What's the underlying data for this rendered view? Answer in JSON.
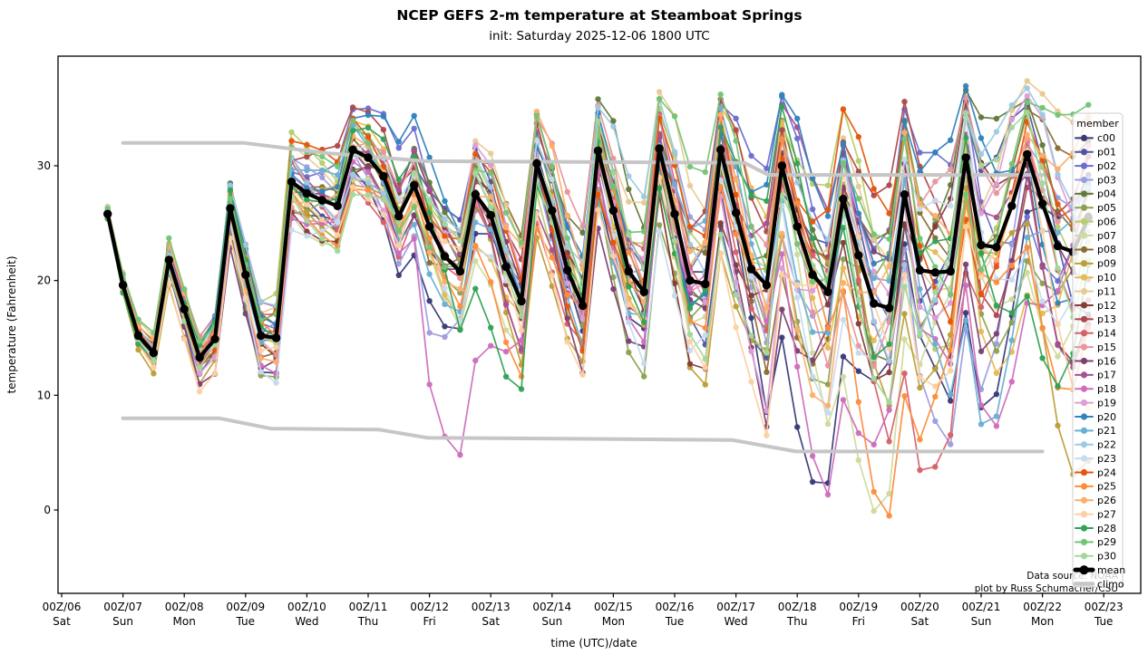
{
  "chart_data": {
    "type": "line",
    "title": "NCEP GEFS 2-m temperature at Steamboat Springs",
    "subtitle": "init: Saturday 2025-12-06 1800 UTC",
    "xlabel": "time (UTC)/date",
    "ylabel": "temperature (Fahrenheit)",
    "ylim": [
      -7.3,
      39.6
    ],
    "y_ticks": [
      0,
      10,
      20,
      30
    ],
    "x_ticks": [
      {
        "utc": "00Z/06",
        "day": "Sat"
      },
      {
        "utc": "00Z/07",
        "day": "Sun"
      },
      {
        "utc": "00Z/08",
        "day": "Mon"
      },
      {
        "utc": "00Z/09",
        "day": "Tue"
      },
      {
        "utc": "00Z/10",
        "day": "Wed"
      },
      {
        "utc": "00Z/11",
        "day": "Thu"
      },
      {
        "utc": "00Z/12",
        "day": "Fri"
      },
      {
        "utc": "00Z/13",
        "day": "Sat"
      },
      {
        "utc": "00Z/14",
        "day": "Sun"
      },
      {
        "utc": "00Z/15",
        "day": "Mon"
      },
      {
        "utc": "00Z/16",
        "day": "Tue"
      },
      {
        "utc": "00Z/17",
        "day": "Wed"
      },
      {
        "utc": "00Z/18",
        "day": "Thu"
      },
      {
        "utc": "00Z/19",
        "day": "Fri"
      },
      {
        "utc": "00Z/20",
        "day": "Sat"
      },
      {
        "utc": "00Z/21",
        "day": "Sun"
      },
      {
        "utc": "00Z/22",
        "day": "Mon"
      },
      {
        "utc": "00Z/23",
        "day": "Tue"
      }
    ],
    "time_start_days": 0.75,
    "time_step_days": 0.25,
    "mean": {
      "name": "mean",
      "color": "#000000",
      "values": [
        25.8,
        19.6,
        15.2,
        13.7,
        21.8,
        17.5,
        13.3,
        14.9,
        26.3,
        20.5,
        15.2,
        15.0,
        28.6,
        27.6,
        27.0,
        26.5,
        31.4,
        30.7,
        29.1,
        25.6,
        28.3,
        24.7,
        22.1,
        20.8,
        27.5,
        25.7,
        21.2,
        18.2,
        30.2,
        26.1,
        20.9,
        17.8,
        31.3,
        26.1,
        20.8,
        19.0,
        31.5,
        25.8,
        20.0,
        19.7,
        31.4,
        25.9,
        21.0,
        19.6,
        30.0,
        24.7,
        20.5,
        19.0,
        27.1,
        22.2,
        18.0,
        17.6,
        27.5,
        20.9,
        20.7,
        20.8,
        30.7,
        23.1,
        22.9,
        26.5,
        31.0,
        26.7,
        23.0,
        22.5,
        25.5
      ]
    },
    "climo": {
      "name": "climo",
      "color": "#c6c6c6",
      "upper_day_value": [
        [
          1,
          32
        ],
        [
          2.96,
          32
        ],
        [
          4.34,
          31.1
        ],
        [
          5.94,
          30.4
        ],
        [
          11.14,
          30.25
        ],
        [
          11.53,
          29.2
        ],
        [
          16,
          29.2
        ]
      ],
      "lower_day_value": [
        [
          1,
          8
        ],
        [
          2.57,
          8
        ],
        [
          3.41,
          7.1
        ],
        [
          5.18,
          7
        ],
        [
          5.96,
          6.3
        ],
        [
          10.94,
          6.1
        ],
        [
          11.98,
          5.1
        ],
        [
          16,
          5.1
        ]
      ]
    },
    "members": [
      {
        "name": "c00",
        "color": "#393b79"
      },
      {
        "name": "p01",
        "color": "#5254a3"
      },
      {
        "name": "p02",
        "color": "#6b6ecf"
      },
      {
        "name": "p03",
        "color": "#9c9ede"
      },
      {
        "name": "p04",
        "color": "#637939"
      },
      {
        "name": "p05",
        "color": "#8ca252"
      },
      {
        "name": "p06",
        "color": "#b5cf6b"
      },
      {
        "name": "p07",
        "color": "#cedb9c"
      },
      {
        "name": "p08",
        "color": "#8c6d31"
      },
      {
        "name": "p09",
        "color": "#bd9e39"
      },
      {
        "name": "p10",
        "color": "#e7ba52"
      },
      {
        "name": "p11",
        "color": "#e7cb94"
      },
      {
        "name": "p12",
        "color": "#843c39"
      },
      {
        "name": "p13",
        "color": "#ad494a"
      },
      {
        "name": "p14",
        "color": "#d6616b"
      },
      {
        "name": "p15",
        "color": "#e7969c"
      },
      {
        "name": "p16",
        "color": "#7b4173"
      },
      {
        "name": "p17",
        "color": "#a55194"
      },
      {
        "name": "p18",
        "color": "#ce6dbd"
      },
      {
        "name": "p19",
        "color": "#de9ed6"
      },
      {
        "name": "p20",
        "color": "#3182bd"
      },
      {
        "name": "p21",
        "color": "#6baed6"
      },
      {
        "name": "p22",
        "color": "#9ecae1"
      },
      {
        "name": "p23",
        "color": "#c6dbef"
      },
      {
        "name": "p24",
        "color": "#e6550d"
      },
      {
        "name": "p25",
        "color": "#fd8d3c"
      },
      {
        "name": "p26",
        "color": "#fdae6b"
      },
      {
        "name": "p27",
        "color": "#fdd0a2"
      },
      {
        "name": "p28",
        "color": "#31a354"
      },
      {
        "name": "p29",
        "color": "#74c476"
      },
      {
        "name": "p30",
        "color": "#a1d99b"
      }
    ],
    "member_model": {
      "note": "members approximated as mean + spread(i) * per-member pattern",
      "spread_breaks": [
        [
          0,
          0.5
        ],
        [
          12,
          3.86
        ],
        [
          32,
          6.26
        ],
        [
          52,
          9.86
        ],
        [
          64,
          9.86
        ]
      ],
      "wave1": {
        "amp": 0.52,
        "freq": 0.52,
        "phase_step": 2.399
      },
      "wave2": {
        "amp": 0.38,
        "freq": 0.205,
        "phase_step": 1.713,
        "phase_off": 1.1
      },
      "bias_weight": 0.5,
      "late_cold_index": 42,
      "late_cold_gain": 1.55,
      "dip_members_mod": 5,
      "dip_members_rem": 3,
      "dip_range": [
        21,
        27
      ],
      "dip_gain": 2.3,
      "soft_high": 34,
      "high_rate": 0.38,
      "cap": 37.4,
      "soft_low": -1.5,
      "low_rate": 0.55,
      "floor": -6.2
    },
    "legend": {
      "title": "member",
      "mean_label": "mean",
      "climo_label": "climo"
    },
    "annotations": [
      "Data source: NOAA",
      "plot by Russ Schumacher/CSU"
    ]
  }
}
